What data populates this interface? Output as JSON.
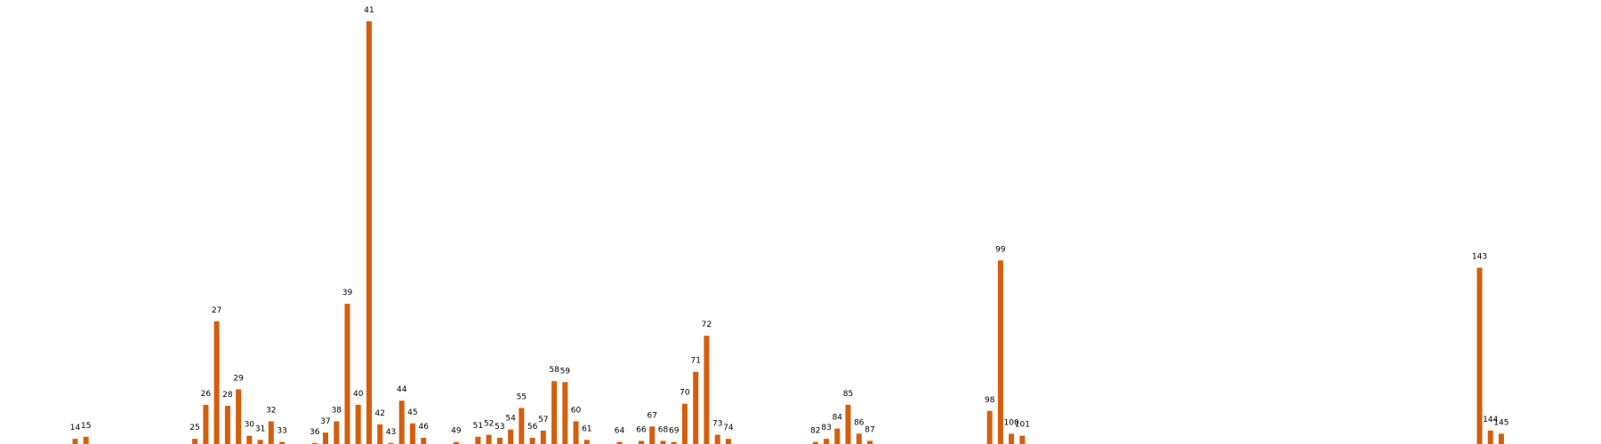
{
  "chart_data": {
    "type": "bar",
    "title": "",
    "xlabel": "",
    "ylabel": "",
    "bar_color": "#d35f0e",
    "background": "#ffffff",
    "axes_visible": false,
    "grid": false,
    "x_range": [
      7,
      180
    ],
    "ylim": [
      0,
      41
    ],
    "x": [
      14,
      15,
      25,
      26,
      27,
      28,
      29,
      30,
      31,
      32,
      33,
      36,
      37,
      38,
      39,
      40,
      41,
      42,
      43,
      44,
      45,
      46,
      49,
      51,
      52,
      53,
      54,
      55,
      56,
      57,
      58,
      59,
      60,
      61,
      64,
      66,
      67,
      68,
      69,
      70,
      71,
      72,
      73,
      74,
      82,
      83,
      84,
      85,
      86,
      87,
      98,
      99,
      100,
      101,
      143,
      144,
      145
    ],
    "labels": [
      "14",
      "15",
      "25",
      "26",
      "27",
      "28",
      "29",
      "30",
      "31",
      "32",
      "33",
      "36",
      "37",
      "38",
      "39",
      "40",
      "41",
      "42",
      "43",
      "44",
      "45",
      "46",
      "49",
      "51",
      "52",
      "53",
      "54",
      "55",
      "56",
      "57",
      "58",
      "59",
      "60",
      "61",
      "64",
      "66",
      "67",
      "68",
      "69",
      "70",
      "71",
      "72",
      "73",
      "74",
      "82",
      "83",
      "84",
      "85",
      "86",
      "87",
      "98",
      "99",
      "100",
      "101",
      "143",
      "144",
      "145"
    ],
    "values": [
      0.5,
      0.7,
      0.5,
      3.8,
      11.9,
      3.7,
      5.3,
      0.8,
      0.4,
      2.2,
      0.2,
      0.1,
      1.1,
      2.2,
      13.6,
      3.8,
      41.0,
      1.9,
      0.1,
      4.2,
      2.0,
      0.6,
      0.2,
      0.7,
      0.9,
      0.6,
      1.4,
      3.5,
      0.6,
      1.3,
      6.1,
      6.0,
      2.2,
      0.4,
      0.2,
      0.3,
      1.7,
      0.3,
      0.2,
      3.9,
      7.0,
      10.5,
      0.9,
      0.5,
      0.2,
      0.5,
      1.5,
      3.8,
      1.0,
      0.3,
      3.2,
      17.8,
      1.0,
      0.8,
      17.1,
      1.3,
      1.0
    ]
  }
}
